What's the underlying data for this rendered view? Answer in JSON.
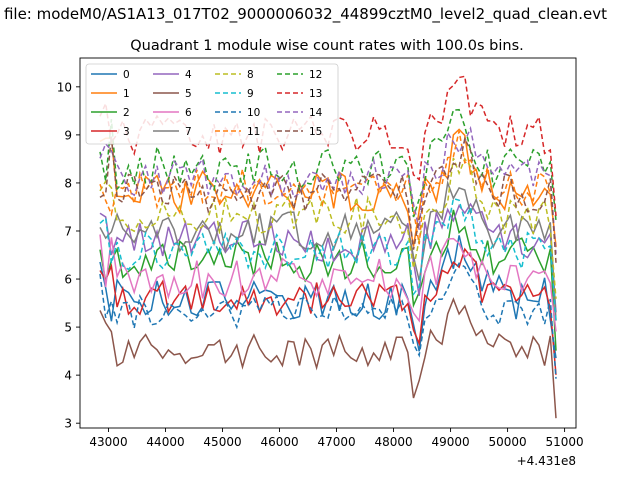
{
  "chart_data": {
    "type": "line",
    "suptitle": "a file: modeM0/AS1A13_017T02_9000006032_44899cztM0_level2_quad_clean.evt",
    "title": "Quadrant 1 module wise count rates with 100.0s bins.",
    "xlabel": "",
    "ylabel": "",
    "x_offset_label": "+4.431e8",
    "xlim": [
      42500,
      51200
    ],
    "ylim": [
      2.9,
      10.6
    ],
    "x_ticks": [
      43000,
      44000,
      45000,
      46000,
      47000,
      48000,
      49000,
      50000,
      51000
    ],
    "y_ticks": [
      3,
      4,
      5,
      6,
      7,
      8,
      9,
      10
    ],
    "x_start": 42850,
    "x_step": 100,
    "n_points": 81,
    "grid": false,
    "legend": "top-left, 4 columns",
    "series": [
      {
        "name": "0",
        "color": "#1f77b4",
        "style": "solid",
        "base": 5.6,
        "amp": 0.45,
        "seed": 1
      },
      {
        "name": "1",
        "color": "#ff7f0e",
        "style": "solid",
        "base": 7.8,
        "amp": 0.45,
        "seed": 2
      },
      {
        "name": "2",
        "color": "#2ca02c",
        "style": "solid",
        "base": 6.4,
        "amp": 0.45,
        "seed": 3
      },
      {
        "name": "3",
        "color": "#d62728",
        "style": "solid",
        "base": 5.6,
        "amp": 0.35,
        "seed": 4
      },
      {
        "name": "4",
        "color": "#9467bd",
        "style": "solid",
        "base": 6.8,
        "amp": 0.45,
        "seed": 5
      },
      {
        "name": "5",
        "color": "#8c564b",
        "style": "solid",
        "base": 4.5,
        "amp": 0.35,
        "seed": 6
      },
      {
        "name": "6",
        "color": "#e377c2",
        "style": "solid",
        "base": 6.0,
        "amp": 0.45,
        "seed": 7
      },
      {
        "name": "7",
        "color": "#7f7f7f",
        "style": "solid",
        "base": 7.0,
        "amp": 0.45,
        "seed": 8
      },
      {
        "name": "8",
        "color": "#bcbd22",
        "style": "dashed",
        "base": 7.3,
        "amp": 0.4,
        "seed": 9
      },
      {
        "name": "9",
        "color": "#17becf",
        "style": "dashed",
        "base": 6.6,
        "amp": 0.4,
        "seed": 10
      },
      {
        "name": "10",
        "color": "#1f77b4",
        "style": "dashed",
        "base": 5.3,
        "amp": 0.35,
        "seed": 11
      },
      {
        "name": "11",
        "color": "#ff7f0e",
        "style": "dashed",
        "base": 7.9,
        "amp": 0.4,
        "seed": 12
      },
      {
        "name": "12",
        "color": "#2ca02c",
        "style": "dashed",
        "base": 8.3,
        "amp": 0.45,
        "seed": 13
      },
      {
        "name": "13",
        "color": "#d62728",
        "style": "dashed",
        "base": 9.0,
        "amp": 0.4,
        "seed": 14
      },
      {
        "name": "14",
        "color": "#9467bd",
        "style": "dashed",
        "base": 8.1,
        "amp": 0.4,
        "seed": 15
      },
      {
        "name": "15",
        "color": "#8c564b",
        "style": "dashed",
        "base": 7.8,
        "amp": 0.4,
        "seed": 16
      }
    ]
  }
}
